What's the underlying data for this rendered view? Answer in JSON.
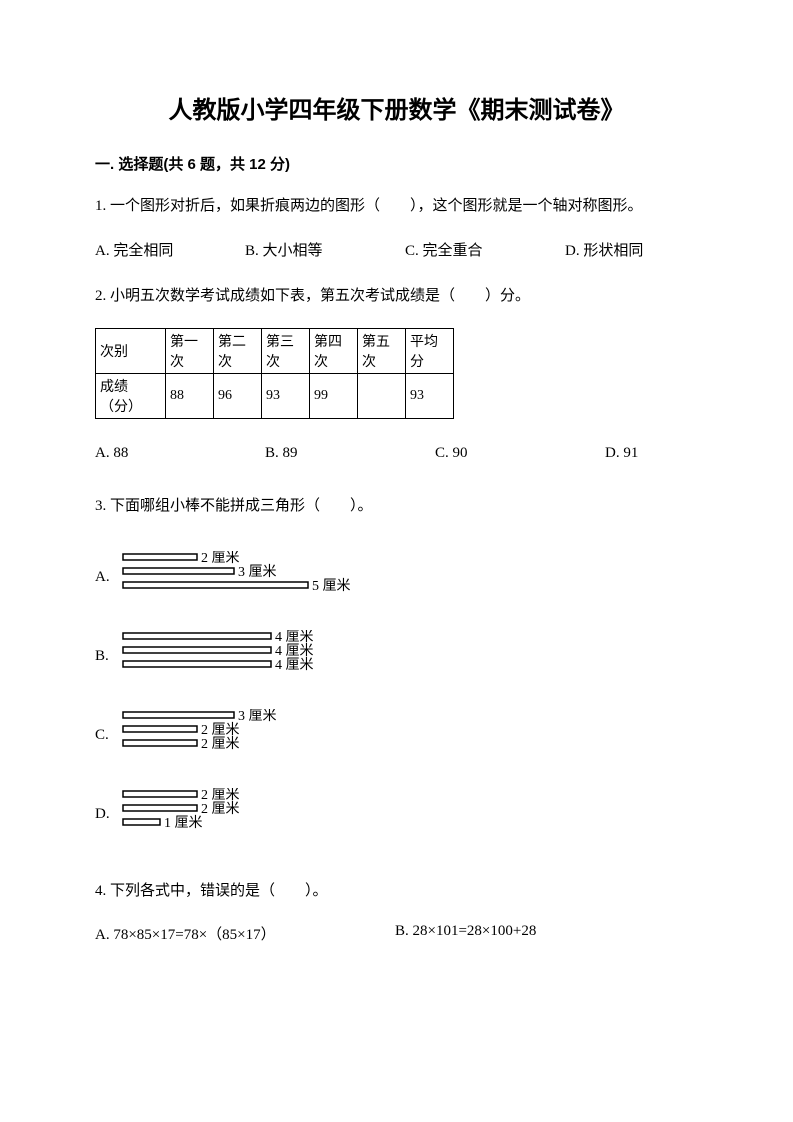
{
  "title": "人教版小学四年级下册数学《期末测试卷》",
  "section1_head": "一. 选择题(共 6 题，共 12 分)",
  "q1": {
    "text": "1. 一个图形对折后，如果折痕两边的图形（　　），这个图形就是一个轴对称图形。",
    "A": "A. 完全相同",
    "B": "B. 大小相等",
    "C": "C. 完全重合",
    "D": "D. 形状相同"
  },
  "q2": {
    "text": "2. 小明五次数学考试成绩如下表，第五次考试成绩是（　　）分。",
    "table": {
      "widths": [
        70,
        48,
        48,
        48,
        48,
        48,
        48
      ],
      "head": [
        "次别",
        "第一次",
        "第二次",
        "第三次",
        "第四次",
        "第五次",
        "平均分"
      ],
      "row": [
        "成绩（分）",
        "88",
        "96",
        "93",
        "99",
        "",
        "93"
      ]
    },
    "A": "A. 88",
    "B": "B. 89",
    "C": "C. 90",
    "D": "D. 91"
  },
  "q3": {
    "text": "3. 下面哪组小棒不能拼成三角形（　　）。",
    "unit": "厘米",
    "scale": 37,
    "options": {
      "A": {
        "label": "A.",
        "sticks": [
          2,
          3,
          5
        ]
      },
      "B": {
        "label": "B.",
        "sticks": [
          4,
          4,
          4
        ]
      },
      "C": {
        "label": "C.",
        "sticks": [
          3,
          2,
          2
        ]
      },
      "D": {
        "label": "D.",
        "sticks": [
          2,
          2,
          1
        ]
      }
    },
    "stroke": "#000000",
    "stroke_width": 4,
    "gap": 14,
    "font_size": 14
  },
  "q4": {
    "text": "4. 下列各式中，错误的是（　　）。",
    "A": "A. 78×85×17=78×（85×17）",
    "B": "B. 28×101=28×100+28"
  }
}
